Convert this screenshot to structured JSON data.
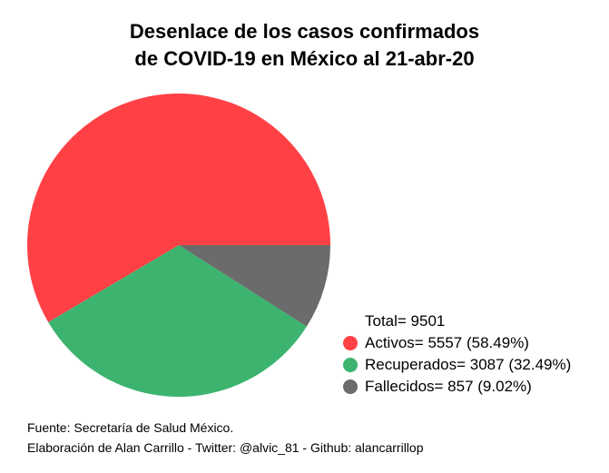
{
  "chart_data": {
    "type": "pie",
    "title_lines": [
      "Desenlace de los casos confirmados",
      "de COVID-19 en México al 21-abr-20"
    ],
    "total_label": "Total= 9501",
    "slices": [
      {
        "label": "Activos",
        "value": 5557,
        "percent": 58.49,
        "color": "#ff4146",
        "legend": "Activos= 5557 (58.49%)"
      },
      {
        "label": "Recuperados",
        "value": 3087,
        "percent": 32.49,
        "color": "#3cb470",
        "legend": "Recuperados= 3087 (32.49%)"
      },
      {
        "label": "Fallecidos",
        "value": 857,
        "percent": 9.02,
        "color": "#6b6b6b",
        "legend": "Fallecidos= 857 (9.02%)"
      }
    ],
    "start_angle": "3 o'clock",
    "direction": "counterclockwise",
    "legend_placement": "bottom-right"
  },
  "footer": {
    "line1": "Fuente: Secretaría de Salud México.",
    "line2": "Elaboración de Alan Carrillo - Twitter: @alvic_81 - Github: alancarrillop"
  }
}
